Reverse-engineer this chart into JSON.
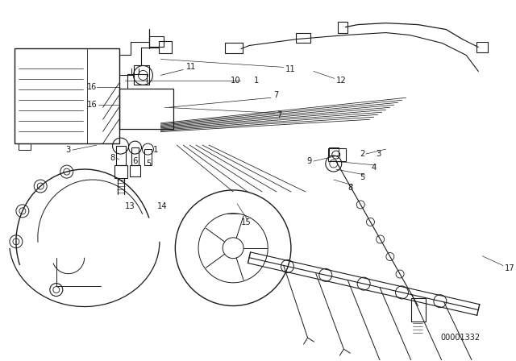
{
  "bg_color": "#ffffff",
  "line_color": "#1a1a1a",
  "catalog_number": "00001332",
  "figsize": [
    6.4,
    4.48
  ],
  "dpi": 100,
  "labels": {
    "1_a": [
      0.205,
      0.455,
      "1"
    ],
    "2": [
      0.46,
      0.5,
      "2"
    ],
    "3_a": [
      0.092,
      0.458,
      "3"
    ],
    "3_b": [
      0.484,
      0.497,
      "3"
    ],
    "4": [
      0.476,
      0.473,
      "4"
    ],
    "5_a": [
      0.468,
      0.451,
      "5"
    ],
    "5_b": [
      0.35,
      0.59,
      ""
    ],
    "6": [
      0.186,
      0.448,
      "6"
    ],
    "7": [
      0.348,
      0.628,
      "7"
    ],
    "8_a": [
      0.152,
      0.442,
      "8"
    ],
    "8_b": [
      0.434,
      0.432,
      "8"
    ],
    "9": [
      0.398,
      0.49,
      "9"
    ],
    "10": [
      0.295,
      0.671,
      "10"
    ],
    "11": [
      0.356,
      0.785,
      "11"
    ],
    "12": [
      0.432,
      0.675,
      "12"
    ],
    "13": [
      0.162,
      0.192,
      "13"
    ],
    "14": [
      0.204,
      0.192,
      "14"
    ],
    "15": [
      0.31,
      0.167,
      "15"
    ],
    "16": [
      0.118,
      0.623,
      "16"
    ],
    "17": [
      0.652,
      0.115,
      "17"
    ],
    "1_b": [
      0.296,
      0.671,
      "1"
    ],
    "1_c": [
      0.188,
      0.458,
      "1"
    ]
  }
}
